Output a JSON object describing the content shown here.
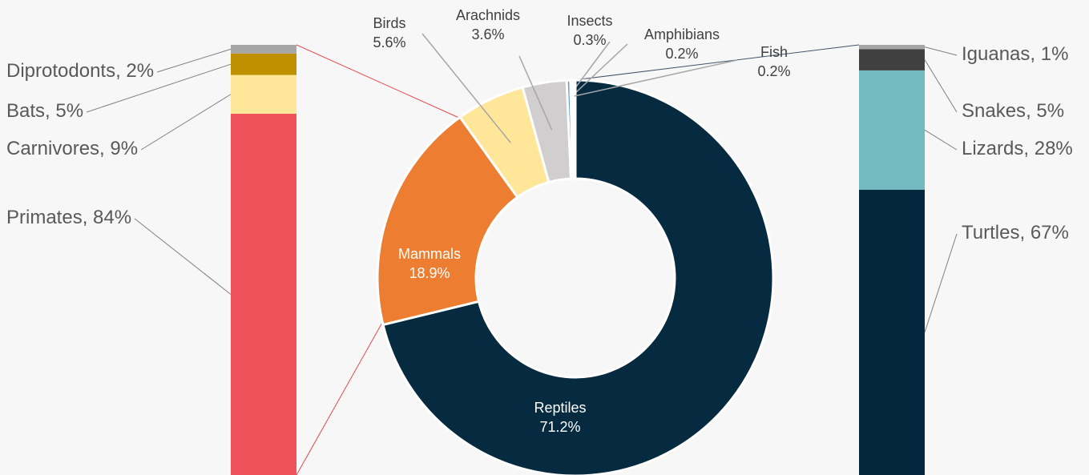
{
  "chart_data": [
    {
      "type": "donut",
      "categories": [
        "Reptiles",
        "Mammals",
        "Birds",
        "Arachnids",
        "Insects",
        "Amphibians",
        "Fish"
      ],
      "values": [
        71.2,
        18.9,
        5.6,
        3.6,
        0.3,
        0.2,
        0.2
      ],
      "value_labels": [
        "71.2%",
        "18.9%",
        "5.6%",
        "3.6%",
        "0.3%",
        "0.2%",
        "0.2%"
      ],
      "colors": [
        "#062a40",
        "#ed7d31",
        "#ffe699",
        "#d0cece",
        "#5b9bd5",
        "#70b8c0",
        "#44546a"
      ]
    },
    {
      "type": "stackedbar",
      "categories": [
        "Primates",
        "Carnivores",
        "Bats",
        "Diprotodonts"
      ],
      "values": [
        84,
        9,
        5,
        2
      ],
      "value_labels": [
        "84%",
        "9%",
        "5%",
        "2%"
      ],
      "colors": [
        "#f0525b",
        "#ffe699",
        "#bf9000",
        "#a6a6a6"
      ]
    },
    {
      "type": "stackedbar",
      "categories": [
        "Turtles",
        "Lizards",
        "Snakes",
        "Iguanas"
      ],
      "values": [
        67,
        28,
        5,
        1
      ],
      "value_labels": [
        "67%",
        "28%",
        "5%",
        "1%"
      ],
      "colors": [
        "#03283e",
        "#72bac0",
        "#404040",
        "#a6a6a6"
      ]
    }
  ]
}
